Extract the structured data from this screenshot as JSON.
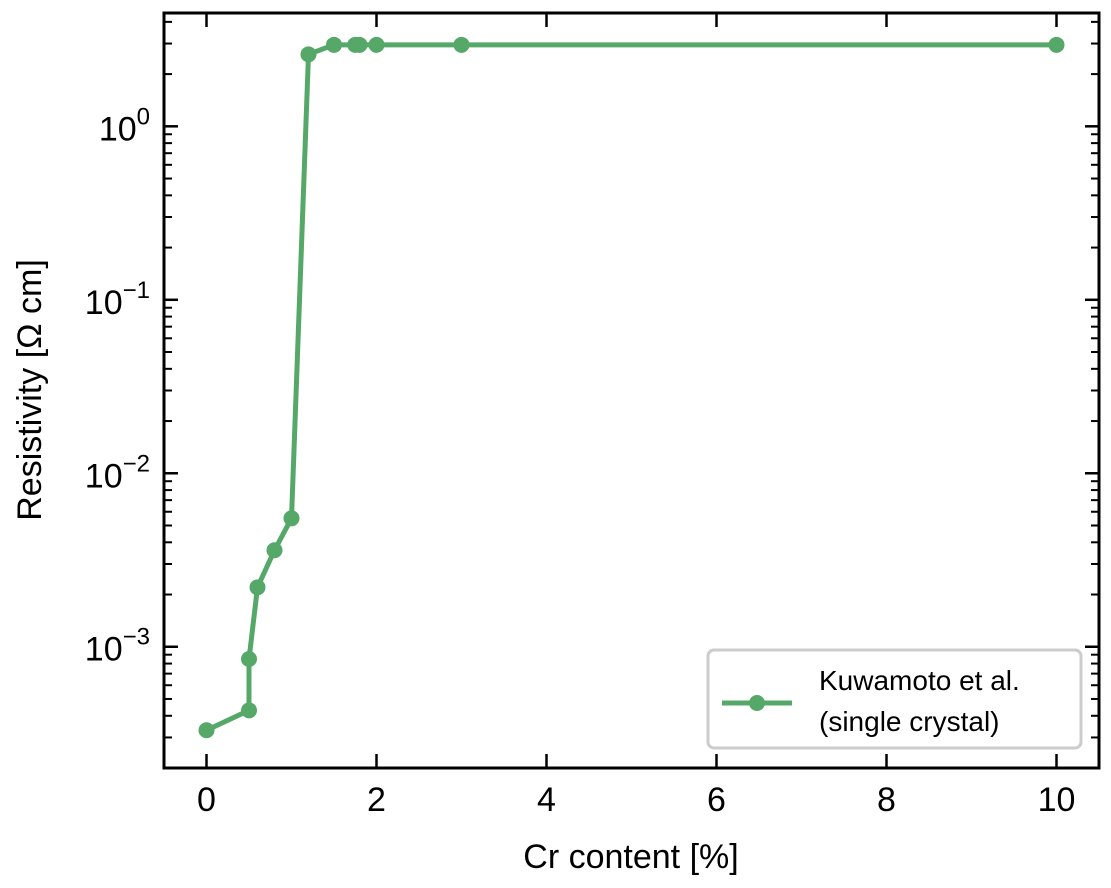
{
  "chart_data": {
    "type": "line",
    "title": "",
    "xlabel": "Cr content [%]",
    "ylabel": "Resistivity [Ω cm]",
    "xlim": [
      -0.5,
      10.5
    ],
    "ylim": [
      0.0002,
      4.5
    ],
    "yscale": "log",
    "grid": false,
    "legend_position": "bottom-right",
    "x_ticks": [
      {
        "value": 0,
        "label": "0"
      },
      {
        "value": 2,
        "label": "2"
      },
      {
        "value": 4,
        "label": "4"
      },
      {
        "value": 6,
        "label": "6"
      },
      {
        "value": 8,
        "label": "8"
      },
      {
        "value": 10,
        "label": "10"
      }
    ],
    "y_ticks": [
      {
        "value": 0.001,
        "base": "10",
        "exp": "−3"
      },
      {
        "value": 0.01,
        "base": "10",
        "exp": "−2"
      },
      {
        "value": 0.1,
        "base": "10",
        "exp": "−1"
      },
      {
        "value": 1,
        "base": "10",
        "exp": "0"
      }
    ],
    "series": [
      {
        "name": "Kuwamoto et al.",
        "name_line2": "(single crystal)",
        "color": "#55a868",
        "x": [
          0,
          0.5,
          0.5,
          0.6,
          0.8,
          1.0,
          1.2,
          1.5,
          1.75,
          1.8,
          2.0,
          3.0,
          10.0
        ],
        "y": [
          0.00033,
          0.00043,
          0.00085,
          0.0022,
          0.0036,
          0.0055,
          2.6,
          2.95,
          2.95,
          2.95,
          2.95,
          2.95,
          2.95
        ]
      }
    ]
  }
}
